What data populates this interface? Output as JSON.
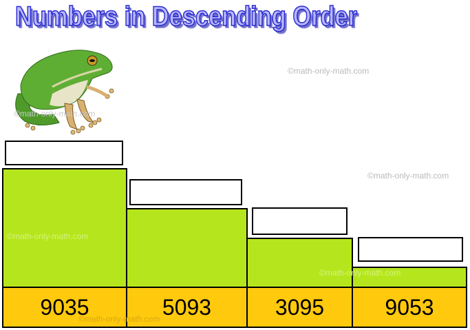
{
  "title": "Numbers in Descending Order",
  "watermark": "©math-only-math.com",
  "numbers": [
    "9035",
    "5093",
    "3095",
    "9053"
  ],
  "colors": {
    "step_fill": "#b5e61d",
    "number_fill": "#ffc90e",
    "title_fill": "#b8b8ff",
    "title_outline": "#2a2ad0"
  },
  "image": "frog-icon"
}
